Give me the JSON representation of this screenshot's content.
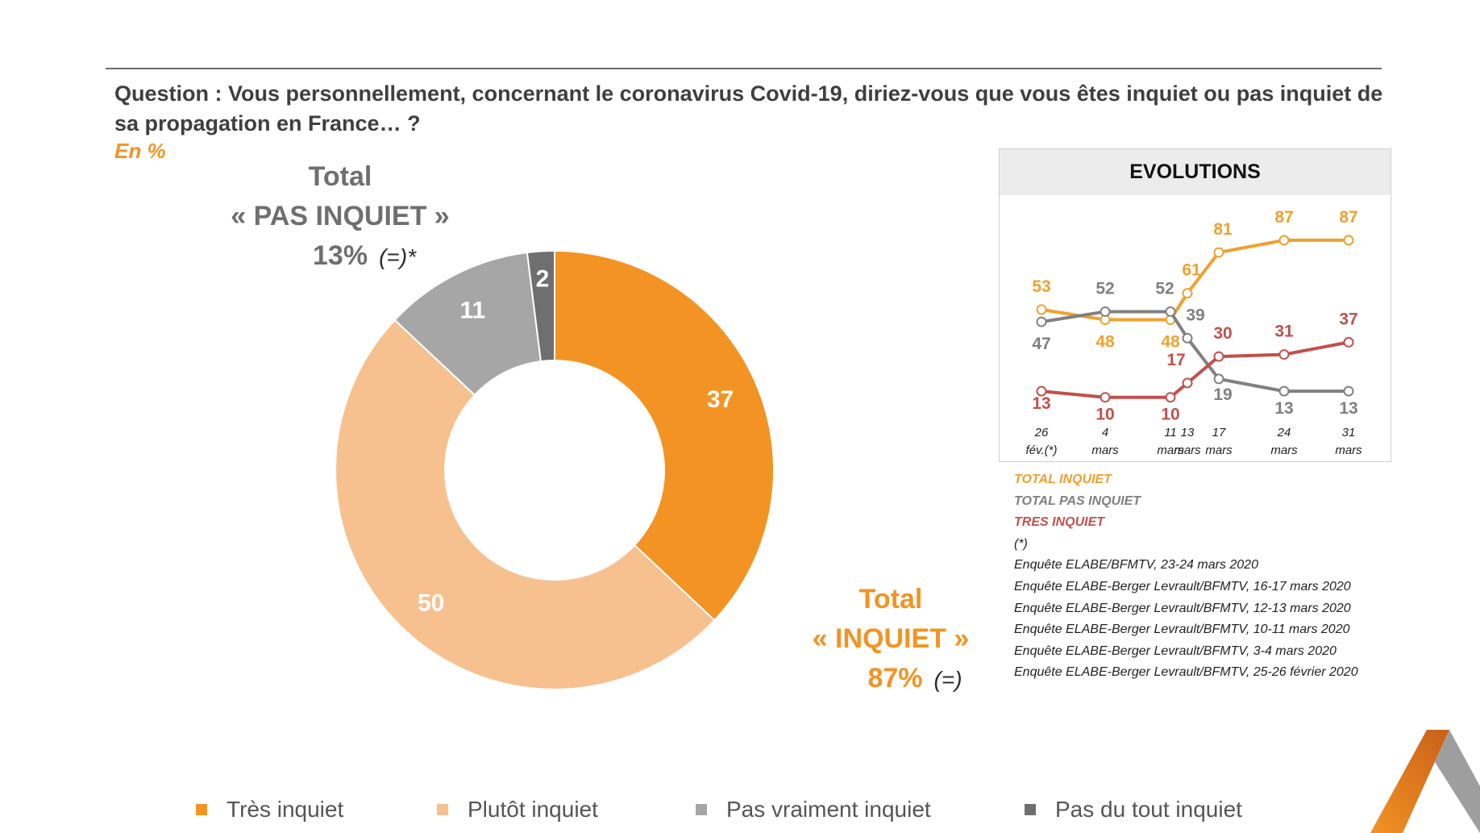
{
  "question": "Question : Vous personnellement, concernant le coronavirus Covid-19, diriez-vous que vous êtes inquiet ou pas inquiet de sa propagation en France… ?",
  "unit": "En %",
  "total_pas_inquiet": {
    "line1": "Total",
    "line2": "« PAS INQUIET »",
    "value": "13%",
    "note": "(=)*"
  },
  "total_inquiet": {
    "line1": "Total",
    "line2": "« INQUIET »",
    "value": "87%",
    "note": "(=)"
  },
  "colors": {
    "tres_inquiet": "#f39323",
    "plutot_inquiet": "#f7c08f",
    "pas_vraiment": "#a6a6a6",
    "pas_du_tout": "#6f6f6f",
    "evo_total_inquiet": "#f0a030",
    "evo_total_pas_inquiet": "#808080",
    "evo_tres_inquiet": "#c0504d"
  },
  "chart_data": [
    {
      "type": "pie",
      "categories": [
        "Très inquiet",
        "Plutôt inquiet",
        "Pas vraiment inquiet",
        "Pas du tout inquiet"
      ],
      "values": [
        37,
        50,
        11,
        2
      ],
      "legend": "bottom"
    },
    {
      "type": "line",
      "title": "EVOLUTIONS",
      "categories": [
        "26 fév.(*)",
        "4 mars",
        "11 mars",
        "13 mars",
        "17 mars",
        "24 mars",
        "31 mars"
      ],
      "series": [
        {
          "name": "TOTAL INQUIET",
          "values": [
            53,
            48,
            48,
            61,
            81,
            87,
            87
          ]
        },
        {
          "name": "TOTAL PAS INQUIET",
          "values": [
            47,
            52,
            52,
            39,
            19,
            13,
            13
          ]
        },
        {
          "name": "TRES INQUIET",
          "values": [
            13,
            10,
            10,
            17,
            30,
            31,
            37
          ]
        }
      ],
      "x_labels": [
        {
          "l1": "26",
          "l2": "fév.(*)"
        },
        {
          "l1": "4",
          "l2": "mars"
        },
        {
          "l1": "11",
          "l2": "mars"
        },
        {
          "l1": "13",
          "l2": "mars"
        },
        {
          "l1": "17",
          "l2": "mars"
        },
        {
          "l1": "24",
          "l2": "mars"
        },
        {
          "l1": "31",
          "l2": "mars"
        }
      ],
      "legend": "bottom"
    }
  ],
  "sources": {
    "star": "(*)",
    "lines": [
      "Enquête ELABE/BFMTV, 23-24 mars 2020",
      "Enquête ELABE-Berger Levrault/BFMTV, 16-17 mars 2020",
      "Enquête ELABE-Berger Levrault/BFMTV, 12-13 mars 2020",
      "Enquête ELABE-Berger Levrault/BFMTV, 10-11 mars 2020",
      "Enquête ELABE-Berger Levrault/BFMTV, 3-4 mars 2020",
      "Enquête ELABE-Berger Levrault/BFMTV, 25-26 février 2020"
    ]
  }
}
